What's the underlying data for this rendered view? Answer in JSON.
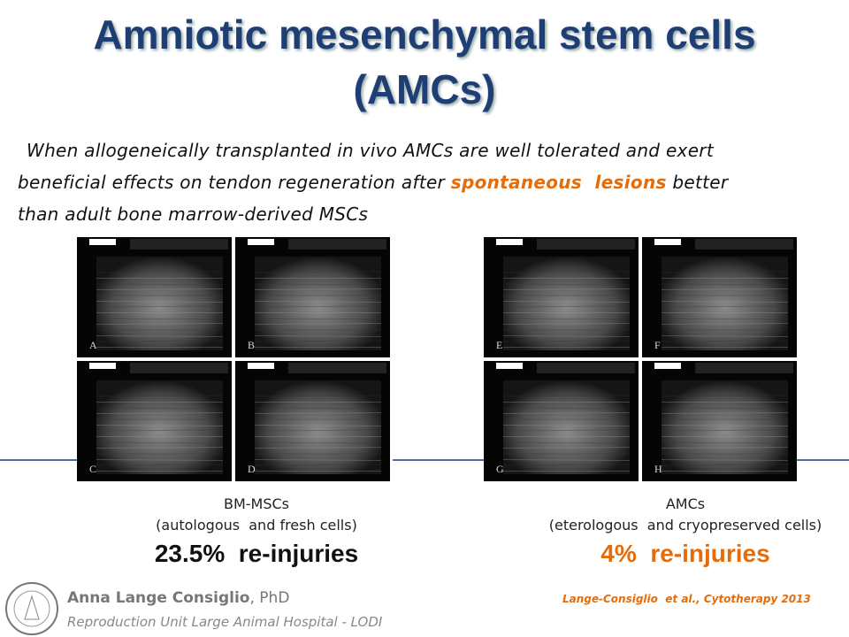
{
  "header": {
    "title_lines": [
      "Amniotic mesenchymal stem cells",
      "(AMCs)"
    ]
  },
  "body": {
    "lines": [
      [
        "When allogeneically transplanted in vivo AMCs are well tolerated and exert"
      ],
      [
        "beneficial effects on tendon regeneration after",
        "spontaneous  lesions",
        "better"
      ],
      [
        "than adult bone marrow-derived MSCs"
      ]
    ]
  },
  "groups": [
    {
      "panels": [
        "A",
        "B",
        "C",
        "D"
      ],
      "name": "BM-MSCs",
      "detail": "(autologous  and fresh cells)",
      "result": "23.5%  re-injuries"
    },
    {
      "panels": [
        "E",
        "F",
        "G",
        "H"
      ],
      "name": "AMCs",
      "detail": "(eterologous  and cryopreserved cells)",
      "result": "4%  re-injuries"
    }
  ],
  "footer": {
    "author": "Anna Lange Consiglio",
    "degree": ", PhD",
    "affiliation": "Reproduction Unit Large Animal Hospital - LODI",
    "reference": "Lange-Consiglio  et al., Cytotherapy 2013"
  }
}
